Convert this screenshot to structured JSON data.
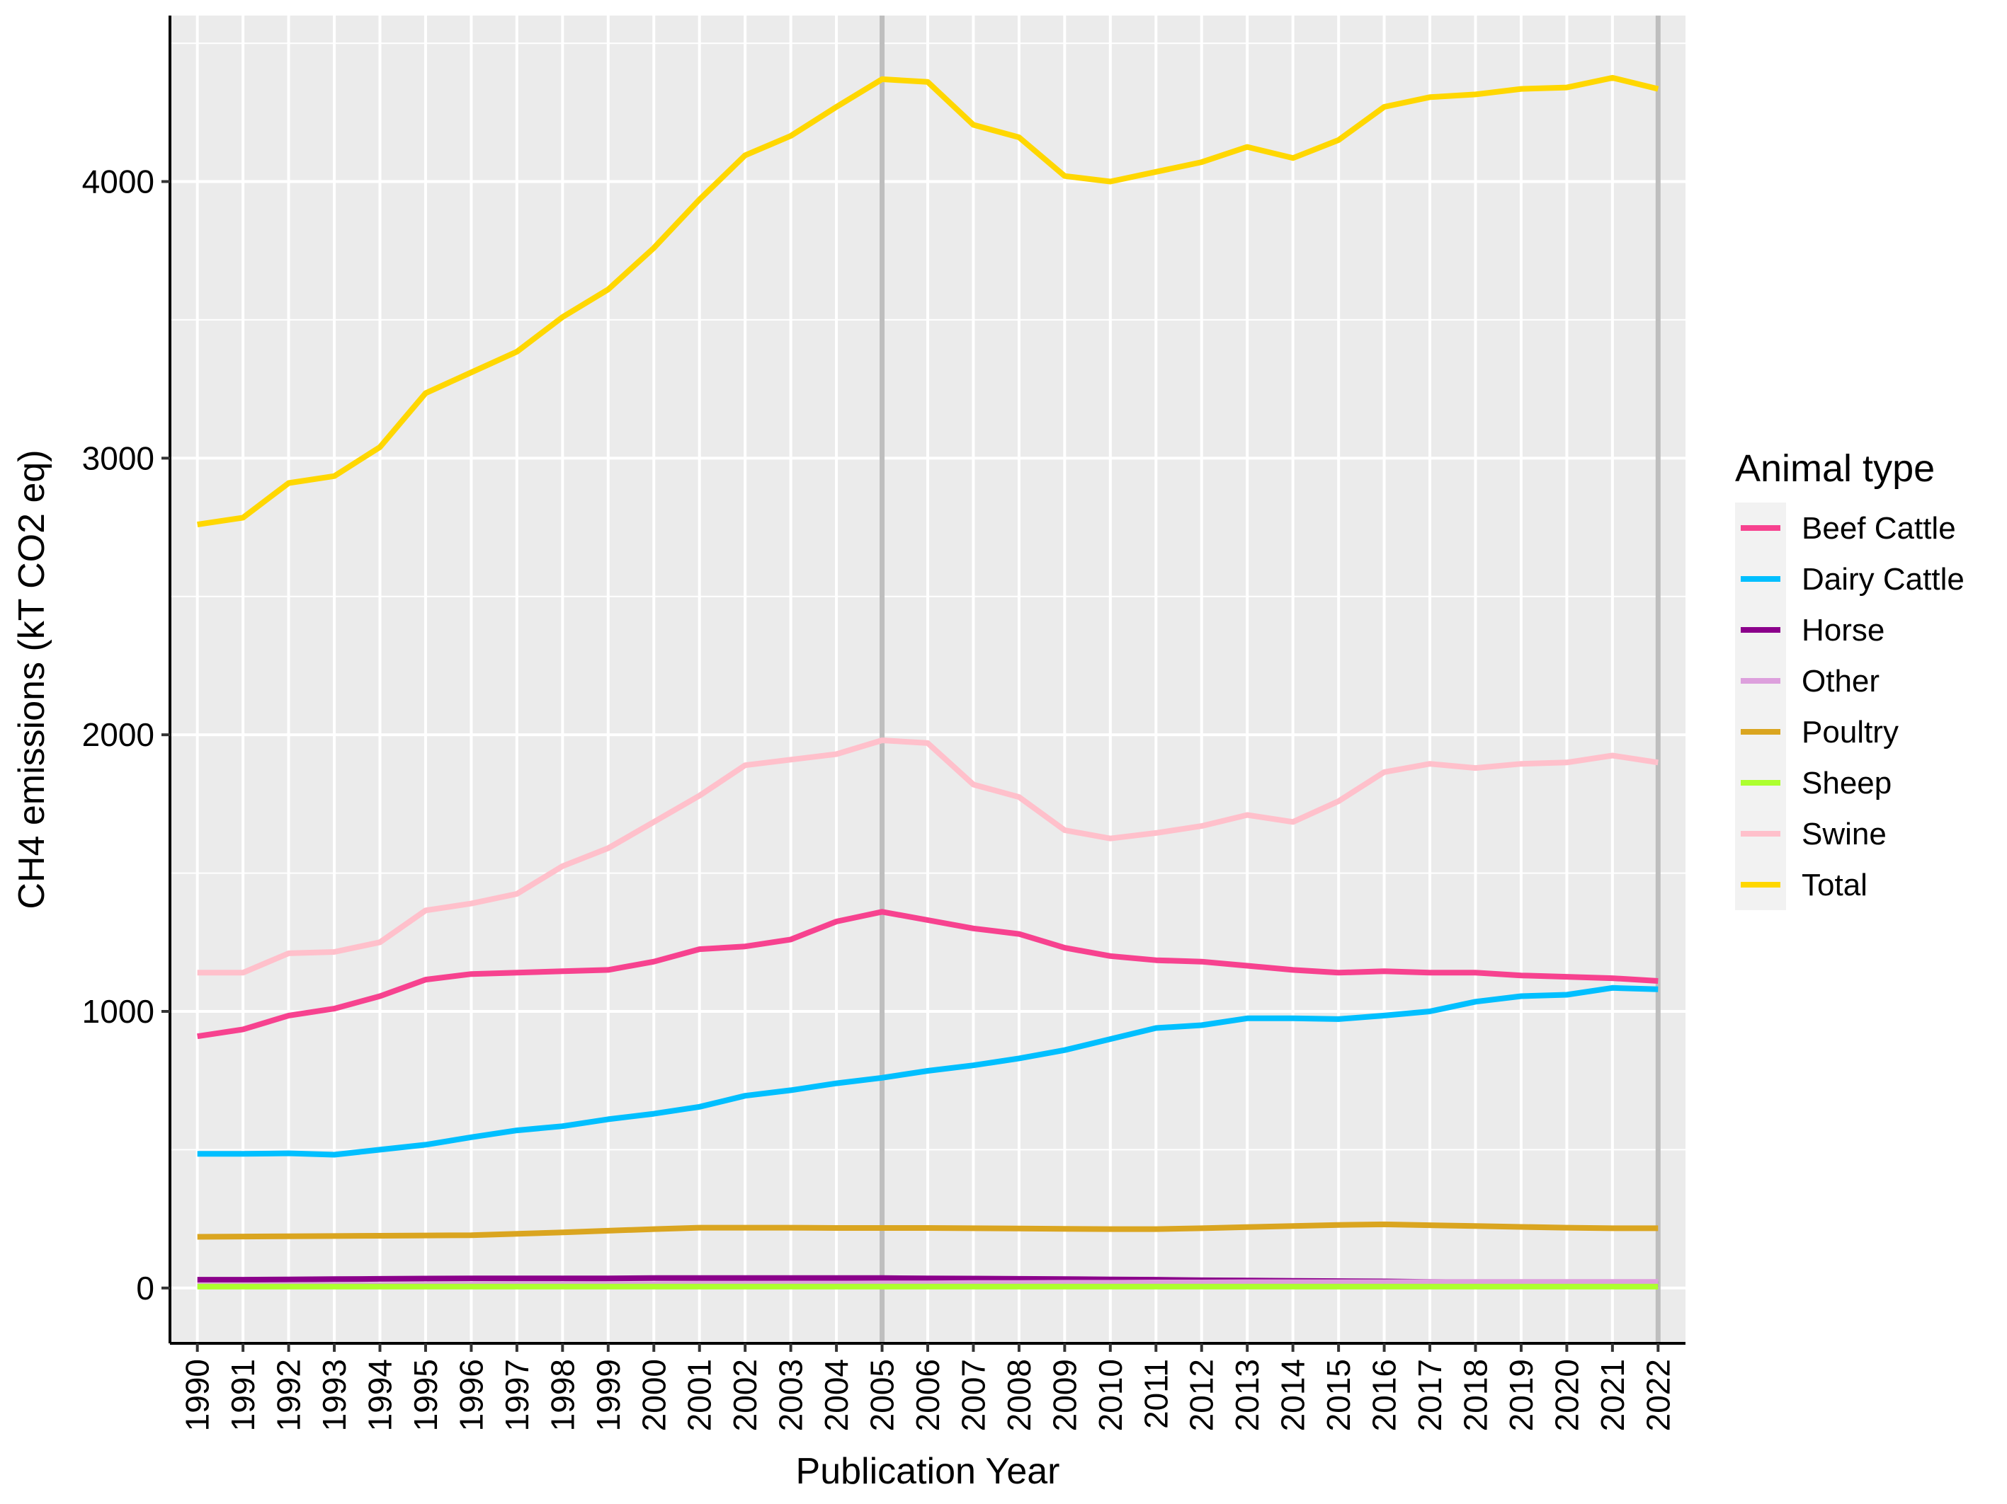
{
  "chart_data": {
    "type": "line",
    "xlabel": "Publication Year",
    "ylabel": "CH4 emissions (kT CO2 eq)",
    "x": [
      1990,
      1991,
      1992,
      1993,
      1994,
      1995,
      1996,
      1997,
      1998,
      1999,
      2000,
      2001,
      2002,
      2003,
      2004,
      2005,
      2006,
      2007,
      2008,
      2009,
      2010,
      2011,
      2012,
      2013,
      2014,
      2015,
      2016,
      2017,
      2018,
      2019,
      2020,
      2021,
      2022
    ],
    "xlim": [
      1989.4,
      2022.6
    ],
    "ylim": [
      -200,
      4600
    ],
    "y_ticks": [
      0,
      1000,
      2000,
      3000,
      4000
    ],
    "grid": true,
    "reference_lines_x": [
      2005,
      2022
    ],
    "legend": {
      "title": "Animal type",
      "position": "right"
    },
    "series": [
      {
        "name": "Beef Cattle",
        "color": "#F7428F",
        "values": [
          910,
          935,
          985,
          1010,
          1055,
          1115,
          1135,
          1140,
          1145,
          1150,
          1180,
          1225,
          1235,
          1260,
          1325,
          1360,
          1330,
          1300,
          1280,
          1230,
          1200,
          1185,
          1180,
          1165,
          1150,
          1140,
          1145,
          1140,
          1140,
          1130,
          1125,
          1120,
          1110
        ]
      },
      {
        "name": "Dairy Cattle",
        "color": "#00BFFF",
        "values": [
          485,
          485,
          487,
          482,
          500,
          518,
          545,
          570,
          585,
          610,
          630,
          655,
          695,
          715,
          740,
          760,
          785,
          805,
          830,
          860,
          900,
          940,
          950,
          975,
          975,
          972,
          985,
          1000,
          1035,
          1055,
          1060,
          1085,
          1080
        ]
      },
      {
        "name": "Horse",
        "color": "#8B008B",
        "values": [
          30,
          30,
          31,
          32,
          33,
          34,
          35,
          35,
          35,
          35,
          36,
          36,
          36,
          36,
          36,
          36,
          35,
          34,
          33,
          32,
          31,
          30,
          28,
          27,
          26,
          25,
          24,
          22,
          20,
          18,
          16,
          15,
          14
        ]
      },
      {
        "name": "Other",
        "color": "#DDA0DD",
        "values": [
          10,
          10,
          10,
          11,
          11,
          12,
          12,
          13,
          13,
          14,
          14,
          15,
          15,
          16,
          16,
          17,
          17,
          18,
          18,
          19,
          19,
          20,
          20,
          21,
          21,
          21,
          21,
          22,
          22,
          22,
          22,
          22,
          22
        ]
      },
      {
        "name": "Poultry",
        "color": "#DAA520",
        "values": [
          185,
          186,
          187,
          188,
          189,
          190,
          191,
          196,
          201,
          207,
          213,
          218,
          218,
          218,
          217,
          217,
          217,
          216,
          215,
          214,
          213,
          213,
          216,
          220,
          224,
          228,
          230,
          227,
          224,
          221,
          218,
          216,
          216
        ]
      },
      {
        "name": "Sheep",
        "color": "#ADFF2F",
        "values": [
          5,
          5,
          5,
          5,
          5,
          5,
          5,
          5,
          5,
          5,
          5,
          5,
          5,
          5,
          5,
          5,
          5,
          5,
          5,
          5,
          5,
          5,
          5,
          5,
          5,
          5,
          5,
          5,
          5,
          5,
          5,
          5,
          5
        ]
      },
      {
        "name": "Swine",
        "color": "#FFC0CB",
        "values": [
          1140,
          1140,
          1210,
          1215,
          1250,
          1365,
          1390,
          1425,
          1525,
          1590,
          1685,
          1780,
          1890,
          1910,
          1930,
          1980,
          1970,
          1820,
          1775,
          1655,
          1625,
          1645,
          1670,
          1710,
          1685,
          1760,
          1865,
          1895,
          1880,
          1895,
          1900,
          1925,
          1900
        ]
      },
      {
        "name": "Total",
        "color": "#FFD700",
        "values": [
          2760,
          2785,
          2910,
          2935,
          3040,
          3235,
          3310,
          3385,
          3510,
          3610,
          3760,
          3935,
          4095,
          4165,
          4270,
          4370,
          4360,
          4205,
          4160,
          4020,
          4000,
          4035,
          4070,
          4125,
          4085,
          4150,
          4270,
          4305,
          4315,
          4335,
          4340,
          4375,
          4335
        ]
      }
    ]
  }
}
